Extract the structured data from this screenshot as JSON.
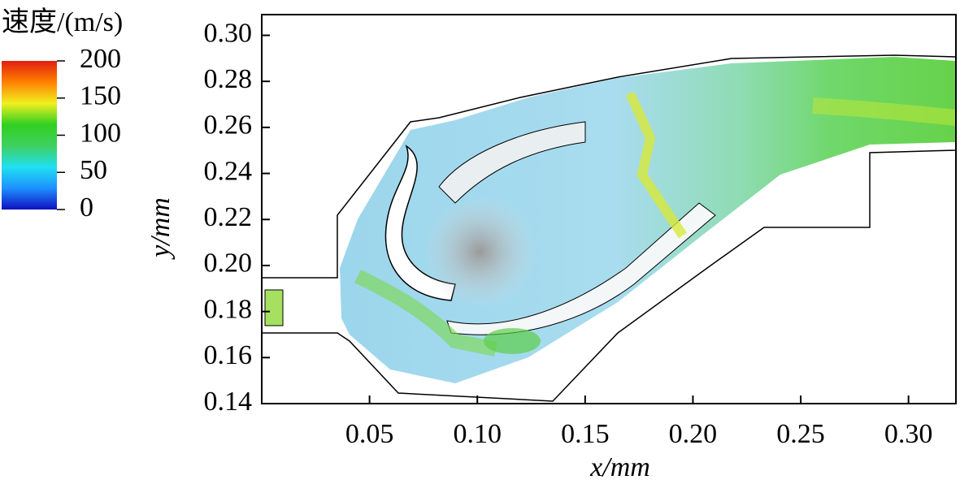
{
  "chart_data": {
    "type": "field",
    "xlabel": "x/mm",
    "ylabel": "y/mm",
    "xlim": [
      0,
      0.322
    ],
    "ylim": [
      0.14,
      0.309
    ],
    "xticks": [
      0.05,
      {
        "value": 0.1,
        "label": "0.10"
      },
      0.15,
      {
        "value": 0.2,
        "label": "0.20"
      },
      0.25,
      {
        "value": 0.3,
        "label": "0.30"
      }
    ],
    "yticks": [
      0.14,
      0.16,
      0.18,
      {
        "value": 0.2,
        "label": "0.20"
      },
      0.22,
      0.24,
      0.26,
      0.28,
      {
        "value": 0.3,
        "label": "0.30"
      }
    ],
    "colorbar": {
      "label": "速度/(m/s)",
      "lim": [
        0,
        200
      ],
      "ticks": [
        0,
        50,
        100,
        150,
        200
      ],
      "colors": [
        "#1010c0",
        "#1e90ff",
        "#20e0f0",
        "#40d060",
        "#30d020",
        "#f0f020",
        "#ff8000",
        "#e02010"
      ]
    }
  }
}
